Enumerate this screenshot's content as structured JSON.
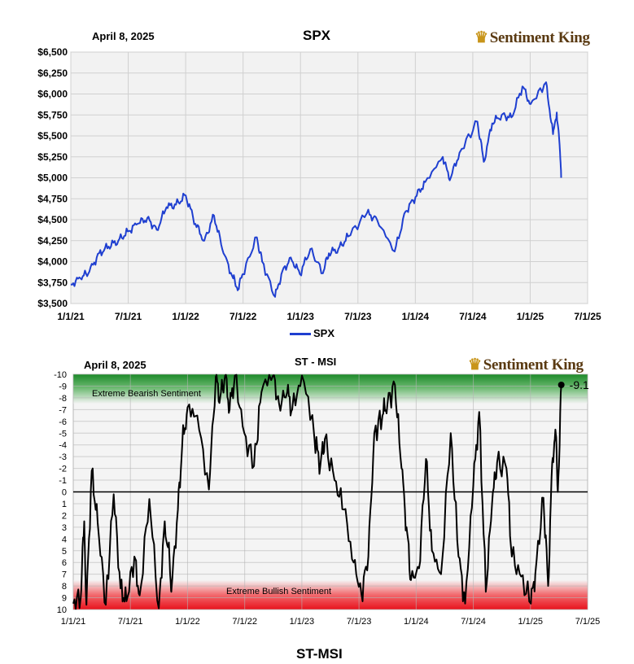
{
  "top": {
    "date": "April 8, 2025",
    "title": "SPX",
    "brand": "Sentiment King",
    "legend": "SPX"
  },
  "bottom": {
    "date": "April 8, 2025",
    "title": "ST - MSI",
    "brand": "Sentiment King",
    "zone_top": "Extreme Bearish Sentiment",
    "zone_bottom": "Extreme Bullish Sentiment",
    "last_value_label": "-9.1",
    "footer": "ST-MSI"
  },
  "colors": {
    "spx_line": "#1f3fd0",
    "msi_line": "#000000",
    "bearish_zone": "#2e9a3a",
    "bullish_zone": "#e8121c"
  },
  "chart_data": [
    {
      "type": "line",
      "title": "SPX",
      "series": [
        {
          "name": "SPX",
          "points": [
            [
              "2021-01-01",
              3730
            ],
            [
              "2021-02-01",
              3800
            ],
            [
              "2021-03-01",
              3880
            ],
            [
              "2021-04-01",
              4100
            ],
            [
              "2021-05-01",
              4180
            ],
            [
              "2021-06-01",
              4250
            ],
            [
              "2021-07-01",
              4360
            ],
            [
              "2021-08-01",
              4450
            ],
            [
              "2021-09-01",
              4520
            ],
            [
              "2021-10-01",
              4380
            ],
            [
              "2021-11-01",
              4650
            ],
            [
              "2021-12-01",
              4680
            ],
            [
              "2022-01-01",
              4790
            ],
            [
              "2022-02-01",
              4450
            ],
            [
              "2022-03-01",
              4250
            ],
            [
              "2022-04-01",
              4550
            ],
            [
              "2022-05-01",
              4100
            ],
            [
              "2022-06-01",
              3800
            ],
            [
              "2022-06-17",
              3670
            ],
            [
              "2022-07-01",
              3850
            ],
            [
              "2022-08-15",
              4290
            ],
            [
              "2022-09-01",
              4000
            ],
            [
              "2022-10-12",
              3580
            ],
            [
              "2022-11-01",
              3850
            ],
            [
              "2022-12-01",
              4050
            ],
            [
              "2022-12-30",
              3850
            ],
            [
              "2023-02-01",
              4150
            ],
            [
              "2023-03-13",
              3860
            ],
            [
              "2023-04-01",
              4100
            ],
            [
              "2023-05-01",
              4150
            ],
            [
              "2023-06-01",
              4300
            ],
            [
              "2023-07-31",
              4580
            ],
            [
              "2023-09-01",
              4500
            ],
            [
              "2023-10-27",
              4120
            ],
            [
              "2023-12-01",
              4600
            ],
            [
              "2024-01-01",
              4770
            ],
            [
              "2024-02-01",
              4950
            ],
            [
              "2024-03-28",
              5250
            ],
            [
              "2024-04-19",
              4970
            ],
            [
              "2024-05-20",
              5300
            ],
            [
              "2024-07-16",
              5670
            ],
            [
              "2024-08-05",
              5190
            ],
            [
              "2024-09-01",
              5650
            ],
            [
              "2024-10-01",
              5750
            ],
            [
              "2024-11-01",
              5720
            ],
            [
              "2024-12-06",
              6090
            ],
            [
              "2025-01-01",
              5880
            ],
            [
              "2025-02-19",
              6140
            ],
            [
              "2025-03-13",
              5520
            ],
            [
              "2025-03-25",
              5780
            ],
            [
              "2025-04-03",
              5390
            ],
            [
              "2025-04-08",
              5000
            ]
          ]
        }
      ],
      "y_ticks": [
        "$3,500",
        "$3,750",
        "$4,000",
        "$4,250",
        "$4,500",
        "$4,750",
        "$5,000",
        "$5,250",
        "$5,500",
        "$5,750",
        "$6,000",
        "$6,250",
        "$6,500"
      ],
      "ylim": [
        3500,
        6500
      ],
      "x_ticks": [
        "1/1/21",
        "7/1/21",
        "1/1/22",
        "7/1/22",
        "1/1/23",
        "7/1/23",
        "1/1/24",
        "7/1/24",
        "1/1/25",
        "7/1/25"
      ],
      "xlim": [
        "2021-01-01",
        "2025-07-01"
      ],
      "grid": true,
      "legend": "bottom"
    },
    {
      "type": "line",
      "title": "ST - MSI",
      "series": [
        {
          "name": "ST-MSI",
          "points": [
            [
              "2021-01-01",
              9.5
            ],
            [
              "2021-01-25",
              9.0
            ],
            [
              "2021-02-05",
              2.5
            ],
            [
              "2021-02-12",
              9.6
            ],
            [
              "2021-03-01",
              -1.8
            ],
            [
              "2021-03-20",
              2.6
            ],
            [
              "2021-04-15",
              9.6
            ],
            [
              "2021-05-10",
              0.2
            ],
            [
              "2021-06-01",
              8.2
            ],
            [
              "2021-06-20",
              9.3
            ],
            [
              "2021-07-15",
              5.5
            ],
            [
              "2021-08-01",
              8.8
            ],
            [
              "2021-09-01",
              0.6
            ],
            [
              "2021-10-01",
              9.9
            ],
            [
              "2021-10-20",
              2.5
            ],
            [
              "2021-11-05",
              6.0
            ],
            [
              "2021-11-10",
              8.5
            ],
            [
              "2021-12-01",
              1.5
            ],
            [
              "2021-12-15",
              -4.0
            ],
            [
              "2022-01-01",
              -7.2
            ],
            [
              "2022-02-01",
              -6.5
            ],
            [
              "2022-03-10",
              -0.2
            ],
            [
              "2022-04-01",
              -9.8
            ],
            [
              "2022-04-15",
              -8.0
            ],
            [
              "2022-05-01",
              -9.9
            ],
            [
              "2022-05-15",
              -7.0
            ],
            [
              "2022-06-01",
              -9.9
            ],
            [
              "2022-07-01",
              -5.0
            ],
            [
              "2022-08-01",
              -2.2
            ],
            [
              "2022-08-25",
              -8.5
            ],
            [
              "2022-10-01",
              -9.9
            ],
            [
              "2022-10-20",
              -7.5
            ],
            [
              "2022-11-15",
              -8.5
            ],
            [
              "2022-12-01",
              -7.0
            ],
            [
              "2023-01-01",
              -9.9
            ],
            [
              "2023-02-10",
              -4.5
            ],
            [
              "2023-03-01",
              -2.3
            ],
            [
              "2023-03-15",
              -4.5
            ],
            [
              "2023-04-15",
              -1.0
            ],
            [
              "2023-05-15",
              1.5
            ],
            [
              "2023-06-15",
              6.0
            ],
            [
              "2023-07-10",
              8.7
            ],
            [
              "2023-08-01",
              5.5
            ],
            [
              "2023-08-20",
              -5.0
            ],
            [
              "2023-09-15",
              -6.5
            ],
            [
              "2023-10-01",
              -7.5
            ],
            [
              "2023-10-25",
              -9.1
            ],
            [
              "2023-11-15",
              -2.0
            ],
            [
              "2023-12-01",
              3.0
            ],
            [
              "2023-12-15",
              7.5
            ],
            [
              "2024-01-10",
              6.5
            ],
            [
              "2024-02-01",
              -2.8
            ],
            [
              "2024-02-20",
              5.0
            ],
            [
              "2024-03-20",
              7.0
            ],
            [
              "2024-04-20",
              -5.0
            ],
            [
              "2024-05-15",
              5.5
            ],
            [
              "2024-06-05",
              9.5
            ],
            [
              "2024-07-01",
              -0.5
            ],
            [
              "2024-07-20",
              -6.8
            ],
            [
              "2024-08-10",
              8.5
            ],
            [
              "2024-08-30",
              1.0
            ],
            [
              "2024-09-15",
              -2.5
            ],
            [
              "2024-10-15",
              -2.0
            ],
            [
              "2024-11-01",
              5.5
            ],
            [
              "2024-12-01",
              7.2
            ],
            [
              "2025-01-01",
              9.5
            ],
            [
              "2025-01-15",
              7.0
            ],
            [
              "2025-02-10",
              0.5
            ],
            [
              "2025-02-25",
              8.0
            ],
            [
              "2025-03-10",
              -2.5
            ],
            [
              "2025-03-20",
              -5.3
            ],
            [
              "2025-03-28",
              0.0
            ],
            [
              "2025-04-08",
              -9.1
            ]
          ]
        }
      ],
      "y_ticks": [
        "-10",
        "-9",
        "-8",
        "-7",
        "-6",
        "-5",
        "-4",
        "-3",
        "-2",
        "-1",
        "0",
        "1",
        "2",
        "3",
        "4",
        "5",
        "6",
        "7",
        "8",
        "9",
        "10"
      ],
      "ylim": [
        -10,
        10
      ],
      "y_inverted": true,
      "x_ticks": [
        "1/1/21",
        "7/1/21",
        "1/1/22",
        "7/1/22",
        "1/1/23",
        "7/1/23",
        "1/1/24",
        "7/1/24",
        "1/1/25",
        "7/1/25"
      ],
      "xlim": [
        "2021-01-01",
        "2025-07-01"
      ],
      "grid": true
    }
  ]
}
